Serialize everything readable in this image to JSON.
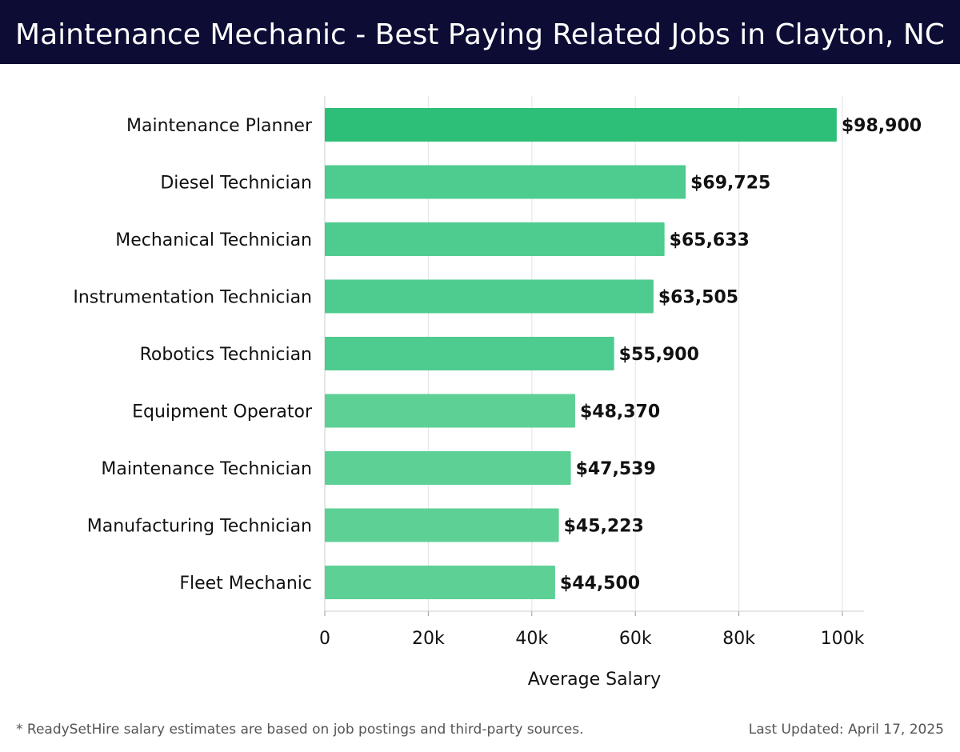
{
  "header": {
    "title": "Maintenance Mechanic - Best Paying Related Jobs in Clayton, NC"
  },
  "chart_data": {
    "type": "bar",
    "orientation": "horizontal",
    "categories": [
      "Maintenance Planner",
      "Diesel Technician",
      "Mechanical Technician",
      "Instrumentation Technician",
      "Robotics Technician",
      "Equipment Operator",
      "Maintenance Technician",
      "Manufacturing Technician",
      "Fleet Mechanic"
    ],
    "values": [
      98900,
      69725,
      65633,
      63505,
      55900,
      48370,
      47539,
      45223,
      44500
    ],
    "value_labels": [
      "$98,900",
      "$69,725",
      "$65,633",
      "$63,505",
      "$55,900",
      "$48,370",
      "$47,539",
      "$45,223",
      "$44,500"
    ],
    "xlabel": "Average Salary",
    "ylabel": "",
    "xlim": [
      0,
      100000
    ],
    "xticks": [
      0,
      20000,
      40000,
      60000,
      80000,
      100000
    ],
    "xtick_labels": [
      "0",
      "20k",
      "40k",
      "60k",
      "80k",
      "100k"
    ],
    "grid": true,
    "colors": {
      "top_bar": "#2dbf78",
      "bar": "#4ecb8e",
      "bar_light": "#5dd096",
      "grid": "#e3e3e3",
      "axis": "#cccccc"
    }
  },
  "footer": {
    "note": "* ReadySetHire salary estimates are based on job postings and third-party sources.",
    "updated": "Last Updated: April 17, 2025"
  }
}
